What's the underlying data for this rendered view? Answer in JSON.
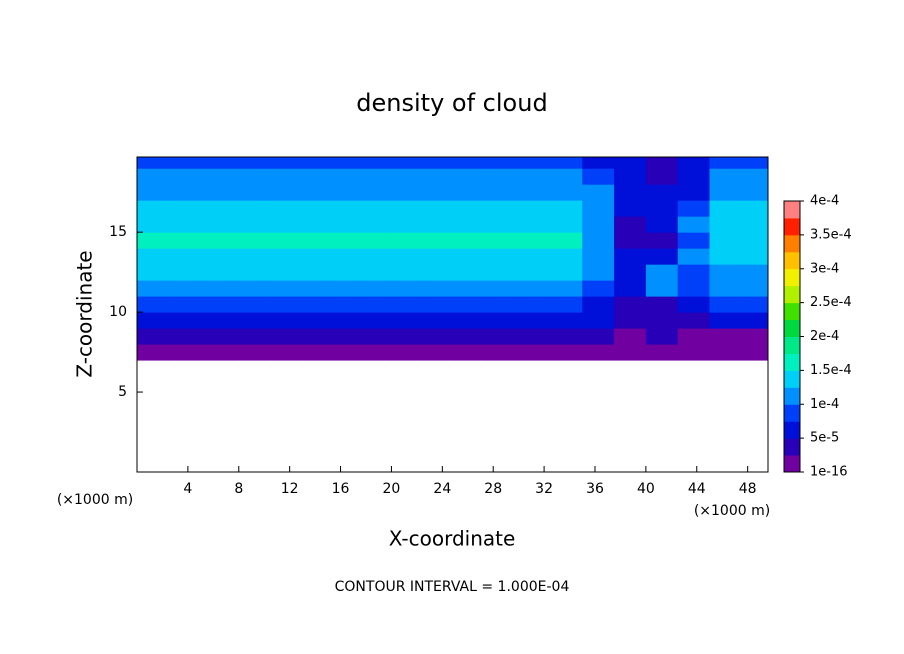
{
  "chart_data": {
    "type": "contour",
    "title": "density of cloud",
    "x_label": "X-coordinate",
    "y_label": "Z-coordinate",
    "x_unit": "(×1000 m)",
    "note": "CONTOUR INTERVAL = 1.000E-04",
    "xlim": [
      0,
      49.6
    ],
    "ylim": [
      0,
      19.7
    ],
    "xticks": [
      4,
      8,
      12,
      16,
      20,
      24,
      28,
      32,
      36,
      40,
      44,
      48
    ],
    "yticks": [
      5,
      10,
      15
    ],
    "x": [
      1.25,
      3.75,
      6.25,
      8.75,
      11.25,
      13.75,
      16.25,
      18.75,
      21.25,
      23.75,
      26.25,
      28.75,
      31.25,
      33.75,
      36.25,
      38.75,
      41.25,
      43.75,
      46.25,
      48.75
    ],
    "y": [
      7.5,
      8.5,
      9.5,
      10.5,
      11.5,
      12.5,
      13.5,
      14.5,
      15.5,
      16.5,
      17.5,
      18.5,
      19.5
    ],
    "z": [
      [
        1e-05,
        3e-05,
        6e-05,
        9e-05,
        0.00011,
        0.00013,
        0.000145,
        0.00015,
        0.000145,
        0.000135,
        0.00012,
        0.0001,
        8e-05
      ],
      [
        1e-05,
        3e-05,
        6e-05,
        9e-05,
        0.00011,
        0.00013,
        0.000145,
        0.00015,
        0.000145,
        0.000135,
        0.00012,
        0.0001,
        8e-05
      ],
      [
        1e-05,
        3e-05,
        6e-05,
        9e-05,
        0.00011,
        0.00013,
        0.000145,
        0.00015,
        0.000145,
        0.000135,
        0.00012,
        0.0001,
        8e-05
      ],
      [
        1e-05,
        3e-05,
        6e-05,
        9e-05,
        0.00011,
        0.00013,
        0.000145,
        0.00015,
        0.000145,
        0.000135,
        0.00012,
        0.0001,
        8e-05
      ],
      [
        1e-05,
        3e-05,
        6e-05,
        9e-05,
        0.00011,
        0.00013,
        0.000145,
        0.00015,
        0.000145,
        0.000135,
        0.00012,
        0.0001,
        8e-05
      ],
      [
        1e-05,
        3e-05,
        6e-05,
        9e-05,
        0.00011,
        0.00013,
        0.000145,
        0.00015,
        0.000145,
        0.000135,
        0.00012,
        0.0001,
        8e-05
      ],
      [
        1e-05,
        3e-05,
        6e-05,
        9e-05,
        0.00011,
        0.00013,
        0.000145,
        0.00015,
        0.000145,
        0.000135,
        0.00012,
        0.0001,
        8e-05
      ],
      [
        1e-05,
        3e-05,
        6e-05,
        9e-05,
        0.00011,
        0.00013,
        0.000145,
        0.00015,
        0.000145,
        0.000135,
        0.00012,
        0.0001,
        8e-05
      ],
      [
        1e-05,
        3e-05,
        6e-05,
        9e-05,
        0.00011,
        0.00013,
        0.000145,
        0.00015,
        0.000145,
        0.000135,
        0.00012,
        0.0001,
        8e-05
      ],
      [
        1e-05,
        3e-05,
        6e-05,
        9e-05,
        0.00011,
        0.00013,
        0.000145,
        0.00015,
        0.000145,
        0.000135,
        0.00012,
        0.0001,
        8e-05
      ],
      [
        1e-05,
        3e-05,
        6e-05,
        9e-05,
        0.00011,
        0.00013,
        0.000145,
        0.00015,
        0.000145,
        0.000135,
        0.00012,
        0.0001,
        8e-05
      ],
      [
        1e-05,
        3e-05,
        6e-05,
        9e-05,
        0.00011,
        0.00013,
        0.000145,
        0.00015,
        0.000145,
        0.000135,
        0.00012,
        0.0001,
        8e-05
      ],
      [
        1e-05,
        3e-05,
        6e-05,
        9e-05,
        0.00011,
        0.00013,
        0.000145,
        0.00015,
        0.000145,
        0.000135,
        0.00012,
        0.0001,
        8e-05
      ],
      [
        1e-05,
        3e-05,
        6e-05,
        9e-05,
        0.00011,
        0.00013,
        0.000145,
        0.00015,
        0.000145,
        0.000135,
        0.00012,
        0.0001,
        8e-05
      ],
      [
        1e-05,
        3e-05,
        5e-05,
        6e-05,
        8e-05,
        0.0001,
        0.00011,
        0.00011,
        0.00011,
        0.000105,
        0.0001,
        9e-05,
        7e-05
      ],
      [
        1e-05,
        2e-05,
        4e-05,
        3e-05,
        5e-05,
        6e-05,
        6e-05,
        3e-05,
        4e-05,
        5e-05,
        6e-05,
        6e-05,
        5e-05
      ],
      [
        1e-05,
        3e-05,
        4e-05,
        4e-05,
        0.00011,
        0.00011,
        7e-05,
        3e-05,
        5e-05,
        6e-05,
        5e-05,
        4e-05,
        4e-05
      ],
      [
        1e-05,
        2e-05,
        4e-05,
        5e-05,
        9e-05,
        8e-05,
        0.0001,
        9e-05,
        0.0001,
        9e-05,
        7e-05,
        6e-05,
        5e-05
      ],
      [
        1e-05,
        2e-05,
        5e-05,
        8e-05,
        0.0001,
        0.00012,
        0.00013,
        0.000135,
        0.00013,
        0.000125,
        0.00011,
        0.0001,
        8e-05
      ],
      [
        1e-05,
        2e-05,
        5e-05,
        8e-05,
        0.0001,
        0.00012,
        0.00013,
        0.000135,
        0.00013,
        0.000125,
        0.00011,
        0.0001,
        8e-05
      ]
    ],
    "levels": [
      0,
      2.5e-05,
      5e-05,
      7.5e-05,
      0.0001,
      0.000125,
      0.00015,
      0.000175,
      0.0002,
      0.000225,
      0.00025,
      0.000275,
      0.0003,
      0.000325,
      0.00035,
      0.000375,
      0.0004
    ],
    "colors": [
      "#7000a0",
      "#2800b8",
      "#0010d8",
      "#0040f8",
      "#0090ff",
      "#00d0f8",
      "#00f0c0",
      "#00e888",
      "#00d840",
      "#40e000",
      "#b0f000",
      "#f0f000",
      "#ffc000",
      "#ff8000",
      "#ff2000",
      "#ff8080"
    ],
    "colorbar_ticks": [
      {
        "value": 1e-16,
        "label": "1e-16"
      },
      {
        "value": 5e-05,
        "label": "5e-5"
      },
      {
        "value": 0.0001,
        "label": "1e-4"
      },
      {
        "value": 0.00015,
        "label": "1.5e-4"
      },
      {
        "value": 0.0002,
        "label": "2e-4"
      },
      {
        "value": 0.00025,
        "label": "2.5e-4"
      },
      {
        "value": 0.0003,
        "label": "3e-4"
      },
      {
        "value": 0.00035,
        "label": "3.5e-4"
      },
      {
        "value": 0.0004,
        "label": "4e-4"
      }
    ]
  }
}
